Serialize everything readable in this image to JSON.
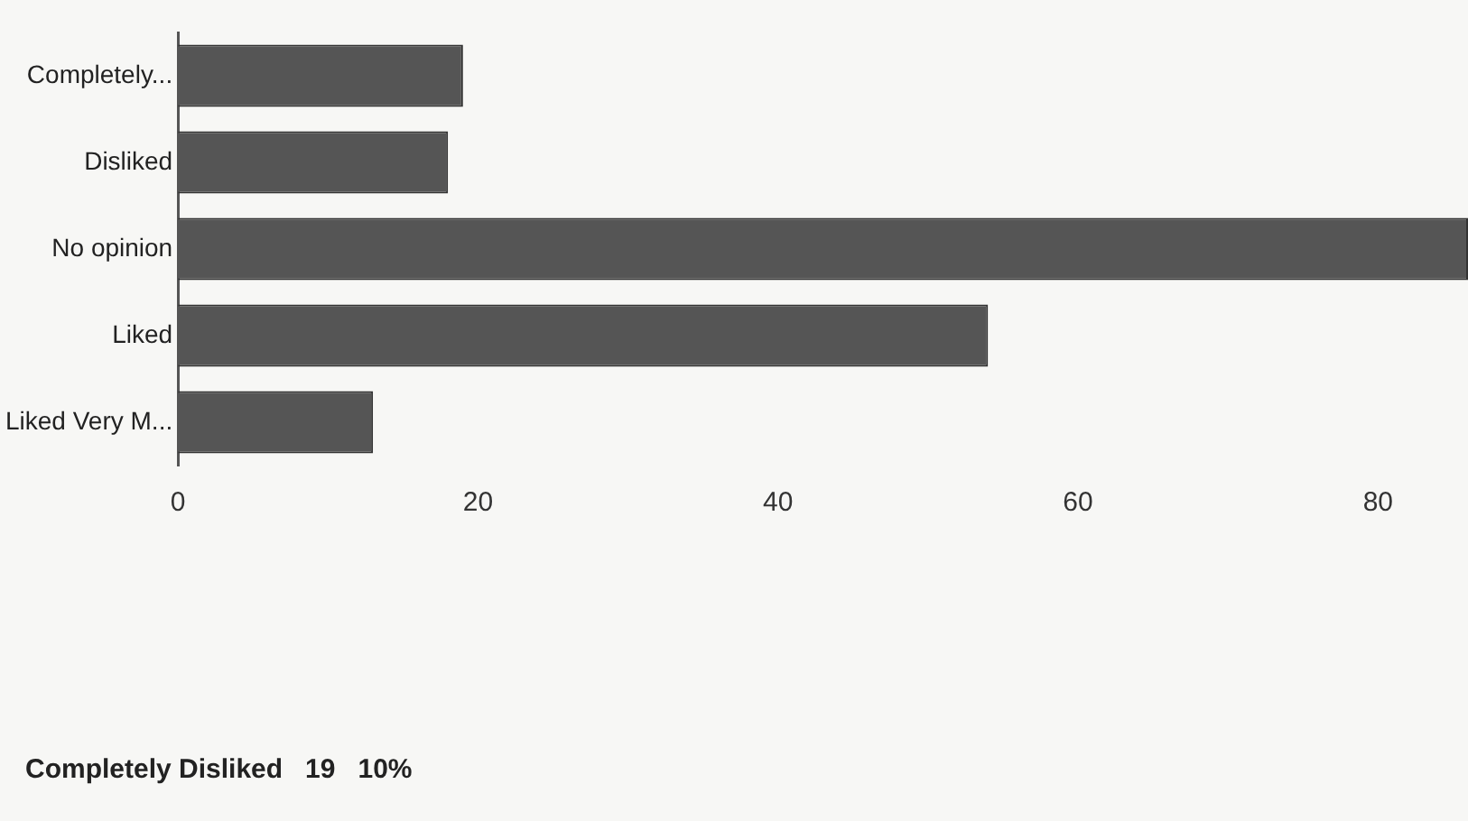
{
  "chart_data": {
    "type": "bar",
    "orientation": "horizontal",
    "categories": [
      "Completely...",
      "Disliked",
      "No opinion",
      "Liked",
      "Liked Very M..."
    ],
    "values": [
      19,
      18,
      86,
      54,
      13
    ],
    "color": "#555555",
    "xlim": [
      0,
      86
    ],
    "xticks": [
      0,
      20,
      40,
      60,
      80
    ],
    "grid": false,
    "annotations": [
      "Completely Disliked   19   10%"
    ]
  }
}
